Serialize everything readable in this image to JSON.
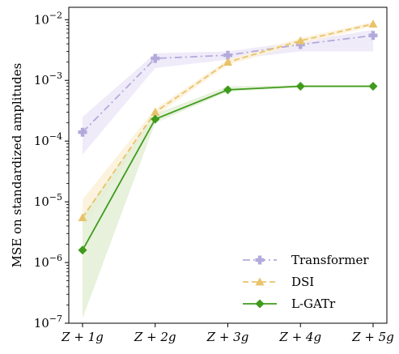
{
  "chart_data": {
    "type": "line",
    "categories": [
      "Z + 1g",
      "Z + 2g",
      "Z + 3g",
      "Z + 4g",
      "Z + 5g"
    ],
    "ylabel": "MSE on standardized amplitudes",
    "yscale": "log",
    "ylim": [
      1e-07,
      0.016
    ],
    "y_ticks": [
      {
        "value": 1e-07,
        "base": "10",
        "exp": "−7"
      },
      {
        "value": 1e-06,
        "base": "10",
        "exp": "−6"
      },
      {
        "value": 1e-05,
        "base": "10",
        "exp": "−5"
      },
      {
        "value": 0.0001,
        "base": "10",
        "exp": "−4"
      },
      {
        "value": 0.001,
        "base": "10",
        "exp": "−3"
      },
      {
        "value": 0.01,
        "base": "10",
        "exp": "−2"
      }
    ],
    "legend_position": "lower-right",
    "series": [
      {
        "name": "Transformer",
        "color": "#b3aadc",
        "band_color": "#ece8f8",
        "line_style": "dash-dot",
        "marker": "plus",
        "values": [
          0.00014,
          0.0023,
          0.0026,
          0.0039,
          0.0055
        ],
        "band_low": [
          6e-05,
          0.0016,
          0.0022,
          0.003,
          0.003
        ],
        "band_high": [
          0.00025,
          0.0028,
          0.003,
          0.0044,
          0.0068
        ]
      },
      {
        "name": "DSI",
        "color": "#e8c36a",
        "band_color": "#fbf1d9",
        "line_style": "dashed",
        "marker": "triangle",
        "values": [
          5.5e-06,
          0.0003,
          0.002,
          0.0045,
          0.0085
        ],
        "band_low": [
          3.5e-06,
          0.00026,
          0.0018,
          0.004,
          0.0078
        ],
        "band_high": [
          1.1e-05,
          0.00034,
          0.0022,
          0.005,
          0.0092
        ]
      },
      {
        "name": "L-GATr",
        "color": "#3f9b1c",
        "band_color": "#e3efd5",
        "line_style": "solid",
        "marker": "diamond",
        "values": [
          1.6e-06,
          0.00023,
          0.0007,
          0.0008,
          0.0008
        ],
        "band_low": [
          1.2e-07,
          0.0002,
          0.00065,
          0.00077,
          0.00077
        ],
        "band_high": [
          6e-06,
          0.00028,
          0.0008,
          0.00083,
          0.00083
        ]
      }
    ]
  }
}
